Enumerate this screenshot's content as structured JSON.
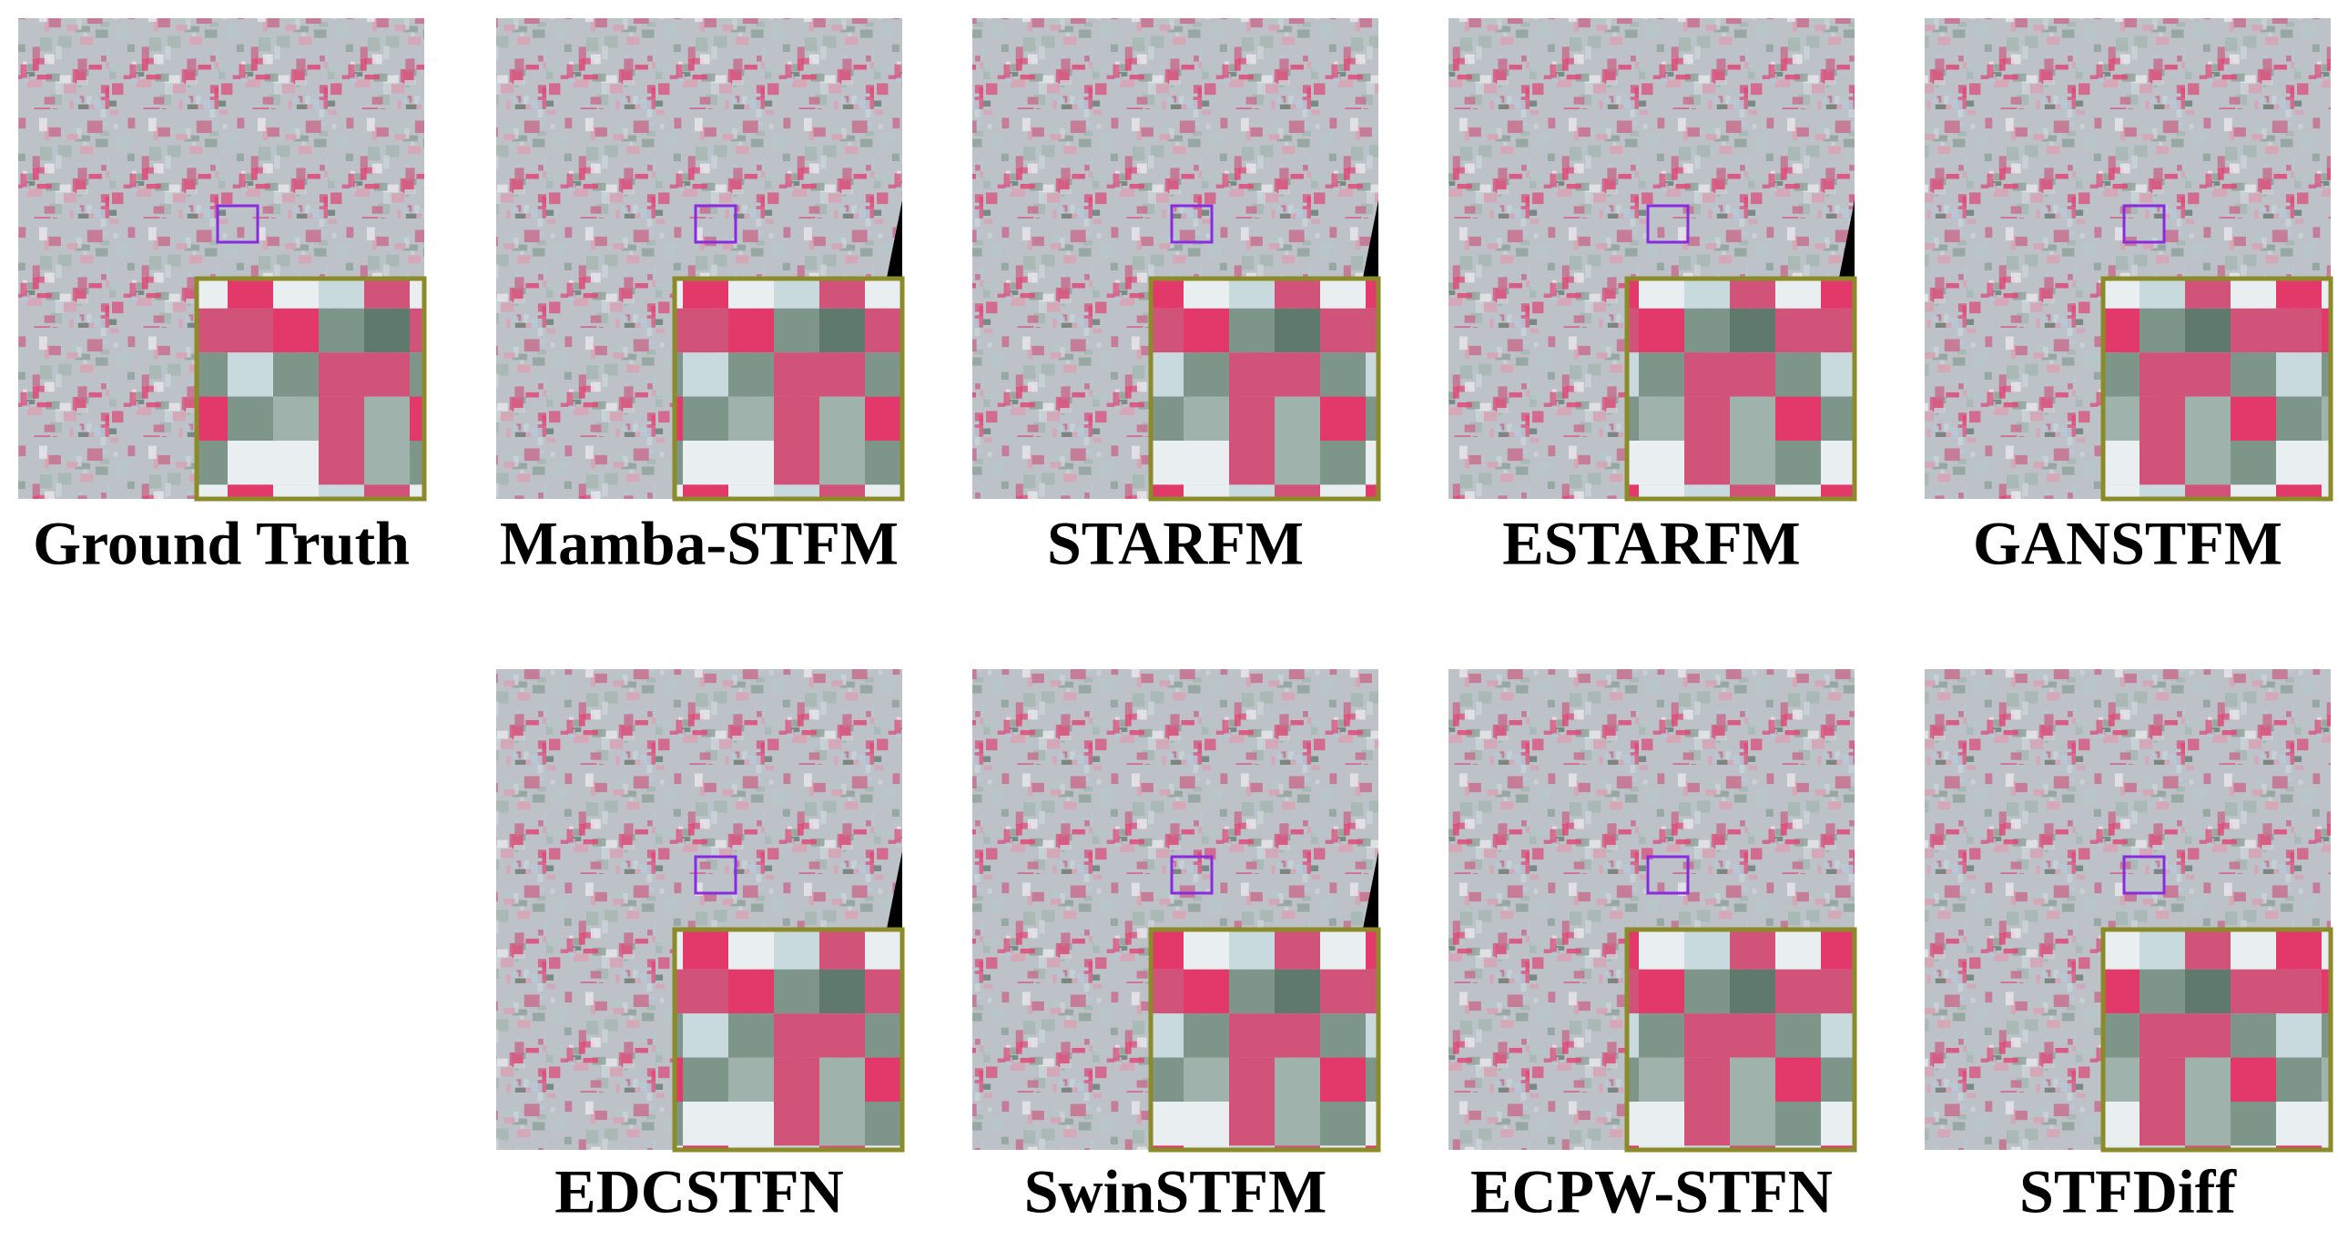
{
  "panels": [
    {
      "label": "Ground Truth"
    },
    {
      "label": "Mamba-STFM"
    },
    {
      "label": "STARFM"
    },
    {
      "label": "ESTARFM"
    },
    {
      "label": "GANSTFM"
    },
    {
      "label": "EDCSTFN"
    },
    {
      "label": "SwinSTFM"
    },
    {
      "label": "ECPW-STFN"
    },
    {
      "label": "STFDiff"
    }
  ]
}
